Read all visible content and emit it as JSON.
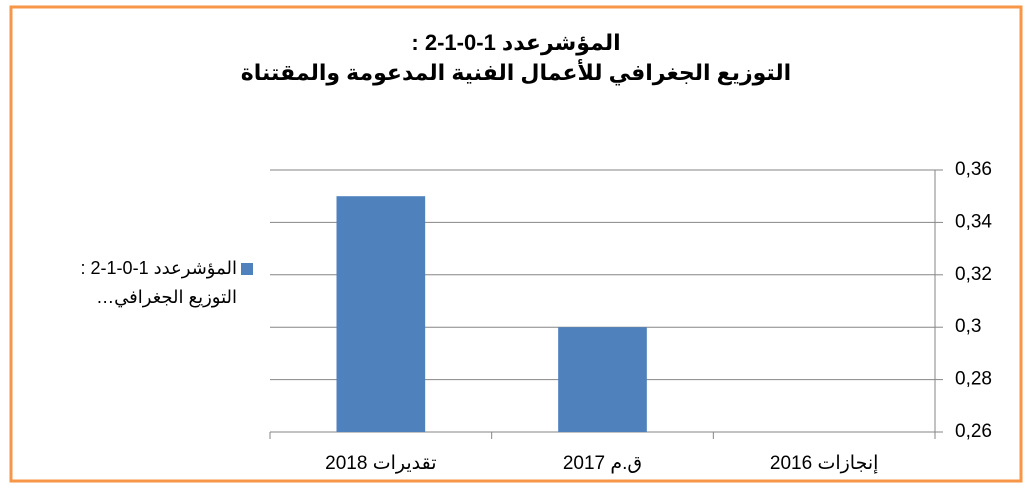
{
  "chart_data": {
    "type": "bar",
    "title": "المؤشرعدد 1-0-1-2 :\nالتوزيع الجغرافي للأعمال الفنية المدعومة والمقتناة",
    "categories": [
      "إنجازات 2016",
      "ق.م 2017",
      "تقديرات 2018"
    ],
    "series": [
      {
        "name": "المؤشرعدد 1-0-1-2 :\nالتوزيع الجغرافي…",
        "color": "#4f81bd",
        "values": [
          null,
          0.3,
          0.35
        ]
      }
    ],
    "ylim": [
      0.26,
      0.36
    ],
    "yticks": [
      {
        "value": 0.26,
        "label": "0,26"
      },
      {
        "value": 0.28,
        "label": "0,28"
      },
      {
        "value": 0.3,
        "label": "0,3"
      },
      {
        "value": 0.32,
        "label": "0,32"
      },
      {
        "value": 0.34,
        "label": "0,34"
      },
      {
        "value": 0.36,
        "label": "0,36"
      }
    ],
    "grid": true,
    "legend": "left"
  }
}
